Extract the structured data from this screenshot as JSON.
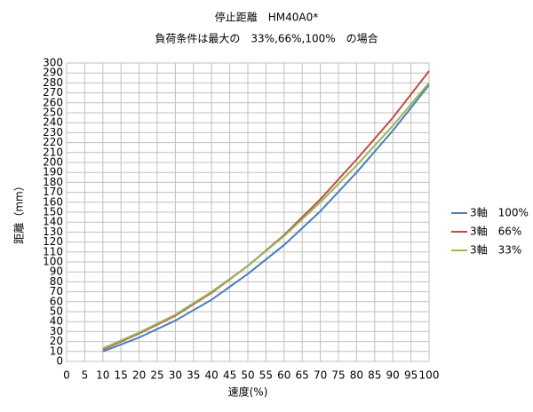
{
  "chart_data": {
    "type": "line",
    "title": "停止距離　HM40A0*",
    "subtitle": "負荷条件は最大の　33%,66%,100%　の場合",
    "x_label": "速度(%)",
    "y_label": "距離（mm）",
    "x": [
      10,
      20,
      30,
      40,
      50,
      60,
      70,
      80,
      90,
      100
    ],
    "series": [
      {
        "name": "3軸　100%",
        "color": "#4a7ebb",
        "values": [
          10,
          24,
          41,
          62,
          88,
          117,
          151,
          190,
          232,
          278
        ]
      },
      {
        "name": "3軸　66%",
        "color": "#be4b48",
        "values": [
          12,
          28,
          46,
          69,
          96,
          127,
          163,
          203,
          245,
          292
        ]
      },
      {
        "name": "3軸　33%",
        "color": "#98b954",
        "values": [
          13,
          29,
          47,
          70,
          96,
          126,
          160,
          197,
          237,
          280
        ]
      }
    ],
    "xlim": [
      0,
      100
    ],
    "xticks": [
      0,
      5,
      10,
      15,
      20,
      25,
      30,
      35,
      40,
      45,
      50,
      55,
      60,
      65,
      70,
      75,
      80,
      85,
      90,
      95,
      100
    ],
    "ylim": [
      0,
      300
    ],
    "yticks": [
      0,
      10,
      20,
      30,
      40,
      50,
      60,
      70,
      80,
      90,
      100,
      110,
      120,
      130,
      140,
      150,
      160,
      170,
      180,
      190,
      200,
      210,
      220,
      230,
      240,
      250,
      260,
      270,
      280,
      290,
      300
    ],
    "grid": true,
    "legend": "right"
  }
}
